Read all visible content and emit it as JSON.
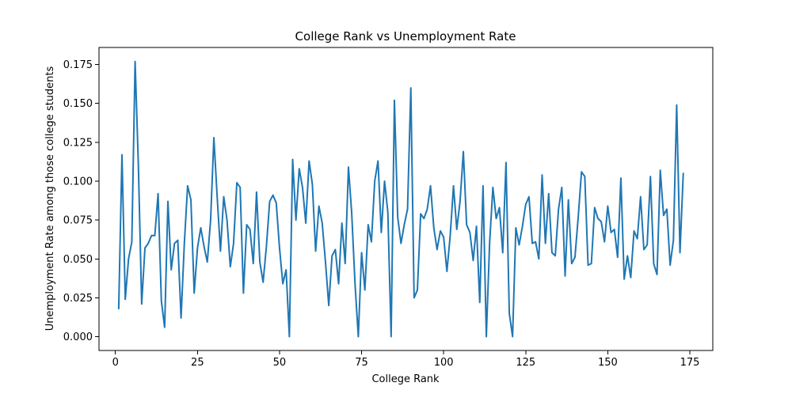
{
  "chart_data": {
    "type": "line",
    "title": "College Rank vs Unemployment Rate",
    "xlabel": "College Rank",
    "ylabel": "Unemployment Rate among those college students",
    "xlim": [
      -5,
      182
    ],
    "ylim": [
      -0.0089,
      0.186
    ],
    "xticks": [
      0,
      25,
      50,
      75,
      100,
      125,
      150,
      175
    ],
    "xtick_labels": [
      "0",
      "25",
      "50",
      "75",
      "100",
      "125",
      "150",
      "175"
    ],
    "yticks": [
      0.0,
      0.025,
      0.05,
      0.075,
      0.1,
      0.125,
      0.15,
      0.175
    ],
    "ytick_labels": [
      "0.000",
      "0.025",
      "0.050",
      "0.075",
      "0.100",
      "0.125",
      "0.150",
      "0.175"
    ],
    "grid": false,
    "colors": {
      "series": "#1f77b4"
    },
    "series": [
      {
        "x": [
          1,
          2,
          3,
          4,
          5,
          6,
          7,
          8,
          9,
          10,
          11,
          12,
          13,
          14,
          15,
          16,
          17,
          18,
          19,
          20,
          21,
          22,
          23,
          24,
          25,
          26,
          27,
          28,
          29,
          30,
          31,
          32,
          33,
          34,
          35,
          36,
          37,
          38,
          39,
          40,
          41,
          42,
          43,
          44,
          45,
          46,
          47,
          48,
          49,
          50,
          51,
          52,
          53,
          54,
          55,
          56,
          57,
          58,
          59,
          60,
          61,
          62,
          63,
          64,
          65,
          66,
          67,
          68,
          69,
          70,
          71,
          72,
          73,
          74,
          75,
          76,
          77,
          78,
          79,
          80,
          81,
          82,
          83,
          84,
          85,
          86,
          87,
          88,
          89,
          90,
          91,
          92,
          93,
          94,
          95,
          96,
          97,
          98,
          99,
          100,
          101,
          102,
          103,
          104,
          105,
          106,
          107,
          108,
          109,
          110,
          111,
          112,
          113,
          114,
          115,
          116,
          117,
          118,
          119,
          120,
          121,
          122,
          123,
          124,
          125,
          126,
          127,
          128,
          129,
          130,
          131,
          132,
          133,
          134,
          135,
          136,
          137,
          138,
          139,
          140,
          141,
          142,
          143,
          144,
          145,
          146,
          147,
          148,
          149,
          150,
          151,
          152,
          153,
          154,
          155,
          156,
          157,
          158,
          159,
          160,
          161,
          162,
          163,
          164,
          165,
          166,
          167,
          168,
          169,
          170,
          171,
          172,
          173
        ],
        "y": [
          0.018,
          0.117,
          0.024,
          0.05,
          0.061,
          0.177,
          0.11,
          0.021,
          0.057,
          0.06,
          0.065,
          0.065,
          0.092,
          0.023,
          0.006,
          0.087,
          0.043,
          0.06,
          0.062,
          0.012,
          0.06,
          0.097,
          0.088,
          0.028,
          0.057,
          0.07,
          0.058,
          0.048,
          0.075,
          0.128,
          0.09,
          0.055,
          0.09,
          0.075,
          0.045,
          0.06,
          0.099,
          0.096,
          0.028,
          0.072,
          0.069,
          0.047,
          0.093,
          0.048,
          0.035,
          0.058,
          0.087,
          0.091,
          0.086,
          0.057,
          0.034,
          0.043,
          0.0,
          0.114,
          0.075,
          0.108,
          0.096,
          0.073,
          0.113,
          0.098,
          0.055,
          0.084,
          0.073,
          0.048,
          0.02,
          0.052,
          0.056,
          0.034,
          0.073,
          0.047,
          0.109,
          0.079,
          0.034,
          0.0,
          0.054,
          0.03,
          0.072,
          0.061,
          0.1,
          0.113,
          0.067,
          0.1,
          0.08,
          0.0,
          0.152,
          0.077,
          0.06,
          0.072,
          0.082,
          0.16,
          0.025,
          0.03,
          0.079,
          0.076,
          0.082,
          0.097,
          0.07,
          0.056,
          0.068,
          0.064,
          0.042,
          0.065,
          0.097,
          0.069,
          0.087,
          0.119,
          0.072,
          0.067,
          0.049,
          0.071,
          0.022,
          0.097,
          0.0,
          0.06,
          0.096,
          0.076,
          0.083,
          0.054,
          0.112,
          0.015,
          0.0,
          0.07,
          0.059,
          0.071,
          0.085,
          0.09,
          0.06,
          0.061,
          0.05,
          0.104,
          0.06,
          0.092,
          0.054,
          0.052,
          0.082,
          0.096,
          0.039,
          0.088,
          0.047,
          0.051,
          0.077,
          0.106,
          0.103,
          0.046,
          0.047,
          0.083,
          0.076,
          0.074,
          0.061,
          0.084,
          0.067,
          0.069,
          0.051,
          0.102,
          0.037,
          0.052,
          0.038,
          0.068,
          0.063,
          0.09,
          0.056,
          0.059,
          0.103,
          0.047,
          0.04,
          0.107,
          0.078,
          0.082,
          0.046,
          0.062,
          0.149,
          0.054,
          0.105
        ]
      }
    ]
  }
}
